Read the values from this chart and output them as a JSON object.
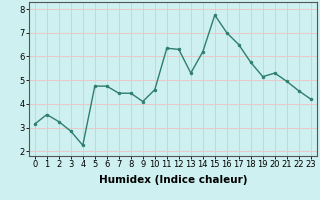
{
  "x": [
    0,
    1,
    2,
    3,
    4,
    5,
    6,
    7,
    8,
    9,
    10,
    11,
    12,
    13,
    14,
    15,
    16,
    17,
    18,
    19,
    20,
    21,
    22,
    23
  ],
  "y": [
    3.15,
    3.55,
    3.25,
    2.85,
    2.25,
    4.75,
    4.75,
    4.45,
    4.45,
    4.1,
    4.6,
    6.35,
    6.3,
    5.3,
    6.2,
    7.75,
    7.0,
    6.5,
    5.75,
    5.15,
    5.3,
    4.95,
    4.55,
    4.2
  ],
  "line_color": "#2e7d6e",
  "marker": "o",
  "markersize": 2.0,
  "linewidth": 1.0,
  "xlabel": "Humidex (Indice chaleur)",
  "xlabel_fontsize": 7.5,
  "xlim": [
    -0.5,
    23.5
  ],
  "ylim": [
    1.8,
    8.3
  ],
  "yticks": [
    2,
    3,
    4,
    5,
    6,
    7,
    8
  ],
  "xticks": [
    0,
    1,
    2,
    3,
    4,
    5,
    6,
    7,
    8,
    9,
    10,
    11,
    12,
    13,
    14,
    15,
    16,
    17,
    18,
    19,
    20,
    21,
    22,
    23
  ],
  "grid_color": "#e8c8c8",
  "bg_color": "#cef0f0",
  "axis_color": "#555555",
  "tick_fontsize": 6.0
}
